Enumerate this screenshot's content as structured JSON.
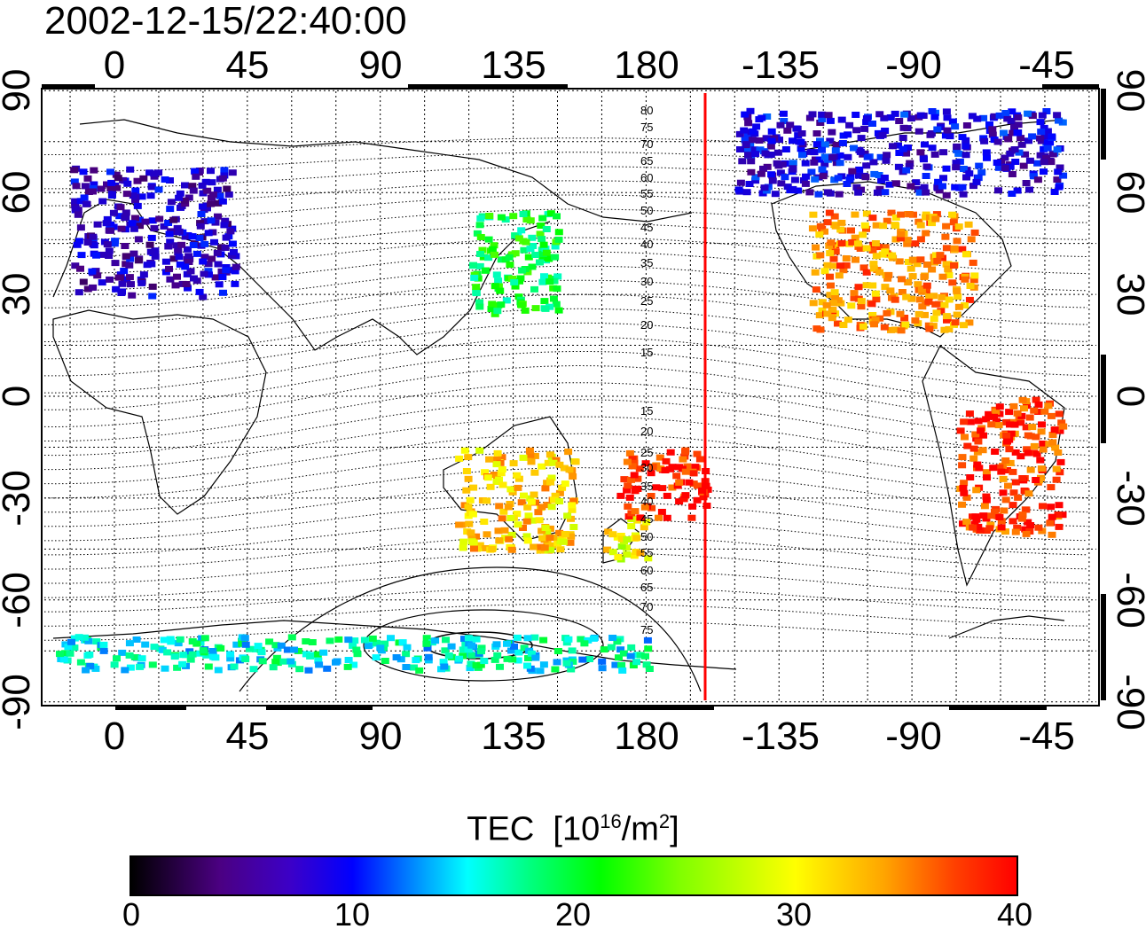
{
  "title": "2002-12-15/22:40:00",
  "map": {
    "lon_ticks": [
      "0",
      "45",
      "90",
      "135",
      "180",
      "-135",
      "-90",
      "-45"
    ],
    "lat_ticks": [
      "90",
      "60",
      "30",
      "0",
      "-30",
      "-60",
      "-90"
    ],
    "mlat_labels_north": [
      "80",
      "75",
      "70",
      "65",
      "60",
      "55",
      "50",
      "45",
      "40",
      "35",
      "30",
      "25",
      "20",
      "15"
    ],
    "mlat_labels_south": [
      "15",
      "20",
      "25",
      "30",
      "35",
      "40",
      "45",
      "50",
      "55",
      "60",
      "65",
      "70",
      "75"
    ],
    "terminator_color": "#ff0000",
    "terminator_lon": -158
  },
  "colorbar": {
    "label": "TEC",
    "unit_prefix": "[10",
    "unit_exp": "16",
    "unit_mid": "/m",
    "unit_exp2": "2",
    "unit_suffix": "]",
    "ticks": [
      "0",
      "10",
      "20",
      "30",
      "40"
    ],
    "colors": [
      "#000000",
      "#4b0082",
      "#0000ff",
      "#00ffff",
      "#00ff00",
      "#ffff00",
      "#ffa500",
      "#ff0000"
    ]
  },
  "tec_regions": [
    {
      "name": "europe",
      "lon": [
        -15,
        40
      ],
      "lat": [
        30,
        68
      ],
      "tec": 7
    },
    {
      "name": "east-asia",
      "lon": [
        120,
        150
      ],
      "lat": [
        25,
        55
      ],
      "tec": 20
    },
    {
      "name": "north-america",
      "lon": [
        -125,
        -70
      ],
      "lat": [
        20,
        55
      ],
      "tec": 35
    },
    {
      "name": "australia",
      "lon": [
        115,
        155
      ],
      "lat": [
        -45,
        -15
      ],
      "tec": 32
    },
    {
      "name": "new-zealand",
      "lon": [
        165,
        180
      ],
      "lat": [
        -48,
        -35
      ],
      "tec": 30
    },
    {
      "name": "south-america",
      "lon": [
        -75,
        -40
      ],
      "lat": [
        -40,
        0
      ],
      "tec": 38
    },
    {
      "name": "pacific",
      "lon": [
        170,
        -160
      ],
      "lat": [
        -35,
        -15
      ],
      "tec": 39
    },
    {
      "name": "antarctic",
      "lon": [
        -20,
        180
      ],
      "lat": [
        -80,
        -70
      ],
      "tec": 16
    },
    {
      "name": "arctic",
      "lon": [
        -150,
        -40
      ],
      "lat": [
        60,
        85
      ],
      "tec": 8
    }
  ]
}
